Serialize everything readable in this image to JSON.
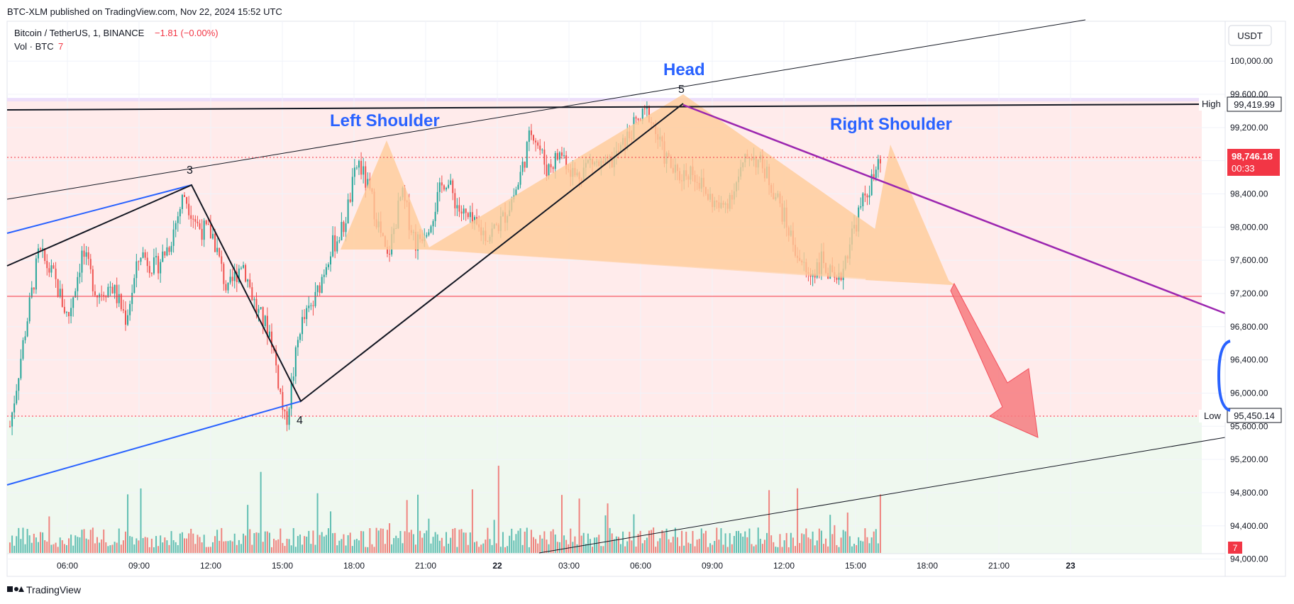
{
  "publish_note": "BTC-XLM published on TradingView.com, Nov 22, 2024 15:52 UTC",
  "legend": {
    "symbol": "Bitcoin / TetherUS, 1, BINANCE",
    "change": "−1.81 (−0.00%)",
    "vol_label": "Vol · BTC",
    "vol_value": "7"
  },
  "currency_button": "USDT",
  "branding": "TradingView",
  "colors": {
    "up": "#26a69a",
    "down": "#ef5350",
    "pattern": "#ffcc99",
    "neckline_zone": "#ffe6e6",
    "volume_zone": "#edf7ed",
    "purple_line": "#9c27b0",
    "blue_line": "#2962ff",
    "arrow": "#f77c80",
    "label_blue": "#2962ff",
    "price_badge": "#f23645"
  },
  "chart_data": {
    "type": "candlestick",
    "title": "Bitcoin / TetherUS, 1, BINANCE",
    "x_ticks": [
      "06:00",
      "09:00",
      "12:00",
      "15:00",
      "18:00",
      "21:00",
      "22",
      "03:00",
      "06:00",
      "09:00",
      "12:00",
      "15:00",
      "18:00",
      "21:00",
      "23"
    ],
    "y_ticks": [
      "100,000.00",
      "99,600.00",
      "99,200.00",
      "98,800.00",
      "98,400.00",
      "98,000.00",
      "97,600.00",
      "97,200.00",
      "96,800.00",
      "96,400.00",
      "96,000.00",
      "95,600.00",
      "95,200.00",
      "94,800.00",
      "94,400.00",
      "94,000.00"
    ],
    "y_values": [
      100000,
      99600,
      99200,
      98800,
      98400,
      98000,
      97600,
      97200,
      96800,
      96400,
      96000,
      95600,
      95200,
      94800,
      94400,
      94000
    ],
    "ylim": [
      93800,
      100480
    ],
    "high": {
      "label": "High",
      "value": "99,419.99"
    },
    "low": {
      "label": "Low",
      "value": "95,450.14"
    },
    "last_price": {
      "value": "98,746.18",
      "countdown": "00:33"
    },
    "volume_badge": "7",
    "pattern": {
      "name": "Head and Shoulders",
      "labels": {
        "left": "Left Shoulder",
        "head": "Head",
        "right": "Right Shoulder"
      }
    },
    "wave_labels": [
      "3",
      "4",
      "5"
    ],
    "price_path": [
      [
        0,
        95600
      ],
      [
        1,
        96700
      ],
      [
        2,
        97700
      ],
      [
        3,
        97400
      ],
      [
        4,
        96900
      ],
      [
        5,
        97700
      ],
      [
        6,
        97200
      ],
      [
        7,
        97300
      ],
      [
        8,
        96900
      ],
      [
        9,
        97700
      ],
      [
        10,
        97500
      ],
      [
        11,
        97800
      ],
      [
        12,
        98400
      ],
      [
        13,
        98000
      ],
      [
        14,
        97900
      ],
      [
        15,
        97200
      ],
      [
        16,
        97600
      ],
      [
        17,
        97000
      ],
      [
        18,
        96700
      ],
      [
        19,
        95600
      ],
      [
        20,
        96800
      ],
      [
        21,
        97100
      ],
      [
        22,
        97700
      ],
      [
        23,
        98000
      ],
      [
        24,
        98800
      ],
      [
        25,
        98300
      ],
      [
        26,
        97600
      ],
      [
        27,
        98400
      ],
      [
        28,
        97800
      ],
      [
        29,
        98100
      ],
      [
        30,
        98600
      ],
      [
        31,
        98200
      ],
      [
        32,
        98000
      ],
      [
        33,
        97900
      ],
      [
        34,
        98100
      ],
      [
        35,
        98500
      ],
      [
        36,
        99200
      ],
      [
        37,
        98700
      ],
      [
        38,
        98900
      ],
      [
        39,
        98600
      ],
      [
        40,
        98800
      ],
      [
        41,
        98700
      ],
      [
        42,
        98900
      ],
      [
        43,
        99200
      ],
      [
        44,
        99400
      ],
      [
        45,
        98900
      ],
      [
        46,
        98600
      ],
      [
        47,
        98700
      ],
      [
        48,
        98400
      ],
      [
        49,
        98200
      ],
      [
        50,
        98500
      ],
      [
        51,
        98900
      ],
      [
        52,
        98700
      ],
      [
        53,
        98300
      ],
      [
        54,
        97800
      ],
      [
        55,
        97400
      ],
      [
        56,
        97600
      ],
      [
        57,
        97250
      ],
      [
        58,
        97900
      ],
      [
        59,
        98400
      ],
      [
        60,
        98746
      ]
    ]
  }
}
